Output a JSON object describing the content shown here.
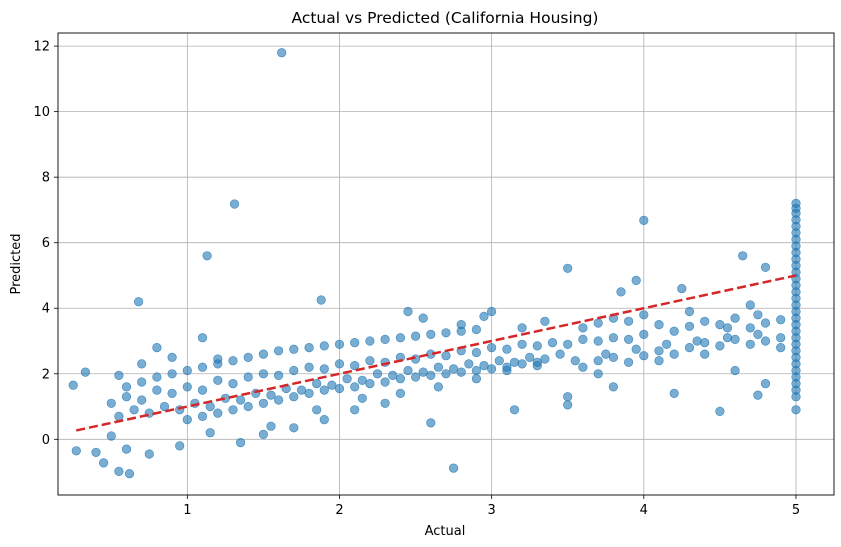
{
  "chart_data": {
    "type": "scatter",
    "title": "Actual vs Predicted (California Housing)",
    "xlabel": "Actual",
    "ylabel": "Predicted",
    "xlim": [
      0.15,
      5.25
    ],
    "ylim": [
      -1.7,
      12.4
    ],
    "xticks": [
      1,
      2,
      3,
      4,
      5
    ],
    "yticks": [
      0,
      2,
      4,
      6,
      8,
      10,
      12
    ],
    "grid": true,
    "marker_color": "#1f77b4",
    "marker_alpha": 0.6,
    "reference_line": {
      "x": [
        0.27,
        5.0
      ],
      "y": [
        0.27,
        5.0
      ],
      "color": "#d62728",
      "style": "dashed"
    },
    "series": [
      {
        "points": [
          [
            1.62,
            11.8
          ],
          [
            1.31,
            7.18
          ],
          [
            1.13,
            5.6
          ],
          [
            0.68,
            4.2
          ],
          [
            1.88,
            4.25
          ],
          [
            4.0,
            6.68
          ],
          [
            2.75,
            -0.88
          ],
          [
            0.55,
            -0.98
          ],
          [
            0.62,
            -1.05
          ],
          [
            0.45,
            -0.72
          ],
          [
            0.27,
            -0.35
          ],
          [
            0.25,
            1.65
          ],
          [
            0.33,
            2.05
          ],
          [
            3.5,
            5.22
          ],
          [
            4.65,
            5.6
          ],
          [
            4.8,
            5.25
          ],
          [
            3.95,
            4.85
          ],
          [
            4.25,
            4.6
          ],
          [
            3.85,
            4.5
          ],
          [
            4.5,
            0.85
          ],
          [
            4.75,
            1.35
          ],
          [
            4.2,
            1.4
          ],
          [
            3.15,
            0.9
          ],
          [
            2.6,
            0.5
          ],
          [
            3.5,
            1.05
          ],
          [
            5.0,
            7.2
          ],
          [
            5.0,
            7.05
          ],
          [
            5.0,
            6.9
          ],
          [
            5.0,
            6.7
          ],
          [
            5.0,
            6.5
          ],
          [
            5.0,
            6.3
          ],
          [
            5.0,
            6.1
          ],
          [
            5.0,
            5.9
          ],
          [
            5.0,
            5.7
          ],
          [
            5.0,
            5.5
          ],
          [
            5.0,
            5.3
          ],
          [
            5.0,
            5.1
          ],
          [
            5.0,
            4.9
          ],
          [
            5.0,
            4.7
          ],
          [
            5.0,
            4.5
          ],
          [
            5.0,
            4.3
          ],
          [
            5.0,
            4.1
          ],
          [
            5.0,
            3.9
          ],
          [
            5.0,
            3.7
          ],
          [
            5.0,
            3.5
          ],
          [
            5.0,
            3.3
          ],
          [
            5.0,
            3.1
          ],
          [
            5.0,
            2.9
          ],
          [
            5.0,
            2.7
          ],
          [
            5.0,
            2.5
          ],
          [
            5.0,
            2.3
          ],
          [
            5.0,
            2.1
          ],
          [
            5.0,
            1.9
          ],
          [
            5.0,
            1.7
          ],
          [
            5.0,
            1.5
          ],
          [
            5.0,
            1.3
          ],
          [
            5.0,
            0.9
          ],
          [
            4.8,
            1.7
          ],
          [
            4.75,
            3.8
          ],
          [
            4.9,
            3.1
          ],
          [
            4.55,
            3.4
          ],
          [
            4.7,
            4.1
          ],
          [
            4.4,
            2.6
          ],
          [
            4.6,
            2.1
          ],
          [
            4.3,
            3.9
          ],
          [
            4.1,
            2.4
          ],
          [
            3.8,
            1.6
          ],
          [
            3.7,
            2.0
          ],
          [
            3.5,
            1.3
          ],
          [
            3.35,
            3.6
          ],
          [
            3.2,
            3.4
          ],
          [
            3.0,
            3.9
          ],
          [
            2.95,
            3.75
          ],
          [
            2.8,
            3.5
          ],
          [
            2.55,
            3.7
          ],
          [
            2.45,
            3.9
          ],
          [
            2.3,
            1.1
          ],
          [
            2.1,
            0.9
          ],
          [
            1.9,
            0.6
          ],
          [
            1.7,
            0.35
          ],
          [
            1.5,
            0.15
          ],
          [
            1.35,
            -0.1
          ],
          [
            1.1,
            3.1
          ],
          [
            1.2,
            2.45
          ],
          [
            0.8,
            2.8
          ],
          [
            0.9,
            2.5
          ],
          [
            0.7,
            2.3
          ],
          [
            0.55,
            1.95
          ],
          [
            0.5,
            0.1
          ],
          [
            0.4,
            -0.4
          ],
          [
            0.6,
            -0.3
          ],
          [
            0.75,
            -0.45
          ],
          [
            0.95,
            -0.2
          ],
          [
            1.15,
            0.2
          ],
          [
            1.55,
            0.4
          ],
          [
            1.85,
            0.9
          ],
          [
            2.15,
            1.25
          ],
          [
            2.4,
            1.4
          ],
          [
            2.65,
            1.6
          ],
          [
            2.9,
            1.85
          ],
          [
            3.1,
            2.1
          ],
          [
            3.3,
            2.25
          ],
          [
            3.55,
            2.4
          ],
          [
            3.75,
            2.6
          ],
          [
            3.95,
            2.75
          ],
          [
            4.15,
            2.9
          ],
          [
            4.35,
            3.0
          ],
          [
            4.55,
            3.1
          ],
          [
            4.75,
            3.2
          ],
          [
            0.5,
            1.1
          ],
          [
            0.6,
            1.3
          ],
          [
            0.7,
            1.2
          ],
          [
            0.8,
            1.5
          ],
          [
            0.9,
            1.4
          ],
          [
            1.0,
            1.6
          ],
          [
            1.1,
            1.5
          ],
          [
            1.2,
            1.8
          ],
          [
            1.3,
            1.7
          ],
          [
            1.4,
            1.9
          ],
          [
            1.5,
            2.0
          ],
          [
            1.6,
            1.95
          ],
          [
            1.7,
            2.1
          ],
          [
            1.8,
            2.2
          ],
          [
            1.9,
            2.15
          ],
          [
            2.0,
            2.3
          ],
          [
            2.1,
            2.25
          ],
          [
            2.2,
            2.4
          ],
          [
            2.3,
            2.35
          ],
          [
            2.4,
            2.5
          ],
          [
            2.5,
            2.45
          ],
          [
            2.6,
            2.6
          ],
          [
            2.7,
            2.55
          ],
          [
            2.8,
            2.7
          ],
          [
            2.9,
            2.65
          ],
          [
            3.0,
            2.8
          ],
          [
            3.1,
            2.75
          ],
          [
            3.2,
            2.9
          ],
          [
            3.3,
            2.85
          ],
          [
            3.4,
            2.95
          ],
          [
            3.5,
            2.9
          ],
          [
            3.6,
            3.05
          ],
          [
            3.7,
            3.0
          ],
          [
            3.8,
            3.1
          ],
          [
            3.9,
            3.05
          ],
          [
            4.0,
            3.2
          ],
          [
            0.55,
            0.7
          ],
          [
            0.65,
            0.9
          ],
          [
            0.75,
            0.8
          ],
          [
            0.85,
            1.0
          ],
          [
            0.95,
            0.9
          ],
          [
            1.05,
            1.1
          ],
          [
            1.15,
            1.0
          ],
          [
            1.25,
            1.25
          ],
          [
            1.35,
            1.2
          ],
          [
            1.45,
            1.4
          ],
          [
            1.55,
            1.35
          ],
          [
            1.65,
            1.55
          ],
          [
            1.75,
            1.5
          ],
          [
            1.85,
            1.7
          ],
          [
            1.95,
            1.65
          ],
          [
            2.05,
            1.85
          ],
          [
            2.15,
            1.8
          ],
          [
            2.25,
            2.0
          ],
          [
            2.35,
            1.95
          ],
          [
            2.45,
            2.1
          ],
          [
            2.55,
            2.05
          ],
          [
            2.65,
            2.2
          ],
          [
            2.75,
            2.15
          ],
          [
            2.85,
            2.3
          ],
          [
            2.95,
            2.25
          ],
          [
            3.05,
            2.4
          ],
          [
            3.15,
            2.35
          ],
          [
            3.25,
            2.5
          ],
          [
            3.35,
            2.45
          ],
          [
            3.45,
            2.6
          ],
          [
            0.6,
            1.6
          ],
          [
            0.7,
            1.75
          ],
          [
            0.8,
            1.9
          ],
          [
            0.9,
            2.0
          ],
          [
            1.0,
            2.1
          ],
          [
            1.1,
            2.2
          ],
          [
            1.2,
            2.3
          ],
          [
            1.3,
            2.4
          ],
          [
            1.4,
            2.5
          ],
          [
            1.5,
            2.6
          ],
          [
            1.6,
            2.7
          ],
          [
            1.7,
            2.75
          ],
          [
            1.8,
            2.8
          ],
          [
            1.9,
            2.85
          ],
          [
            2.0,
            2.9
          ],
          [
            2.1,
            2.95
          ],
          [
            2.2,
            3.0
          ],
          [
            2.3,
            3.05
          ],
          [
            2.4,
            3.1
          ],
          [
            2.5,
            3.15
          ],
          [
            2.6,
            3.2
          ],
          [
            2.7,
            3.25
          ],
          [
            2.8,
            3.3
          ],
          [
            2.9,
            3.35
          ],
          [
            1.0,
            0.6
          ],
          [
            1.1,
            0.7
          ],
          [
            1.2,
            0.8
          ],
          [
            1.3,
            0.9
          ],
          [
            1.4,
            1.0
          ],
          [
            1.5,
            1.1
          ],
          [
            1.6,
            1.2
          ],
          [
            1.7,
            1.3
          ],
          [
            1.8,
            1.4
          ],
          [
            1.9,
            1.5
          ],
          [
            2.0,
            1.55
          ],
          [
            2.1,
            1.6
          ],
          [
            2.2,
            1.7
          ],
          [
            2.3,
            1.75
          ],
          [
            2.4,
            1.85
          ],
          [
            2.5,
            1.9
          ],
          [
            2.6,
            1.95
          ],
          [
            2.7,
            2.0
          ],
          [
            2.8,
            2.05
          ],
          [
            2.9,
            2.1
          ],
          [
            3.0,
            2.15
          ],
          [
            3.1,
            2.2
          ],
          [
            3.2,
            2.3
          ],
          [
            3.3,
            2.35
          ],
          [
            3.6,
            2.2
          ],
          [
            3.7,
            2.4
          ],
          [
            3.8,
            2.5
          ],
          [
            3.9,
            2.35
          ],
          [
            4.0,
            2.55
          ],
          [
            4.1,
            2.7
          ],
          [
            4.2,
            2.6
          ],
          [
            4.3,
            2.8
          ],
          [
            4.4,
            2.95
          ],
          [
            4.5,
            2.85
          ],
          [
            4.6,
            3.05
          ],
          [
            4.7,
            2.9
          ],
          [
            4.8,
            3.0
          ],
          [
            4.9,
            2.8
          ],
          [
            3.6,
            3.4
          ],
          [
            3.7,
            3.55
          ],
          [
            3.8,
            3.7
          ],
          [
            3.9,
            3.6
          ],
          [
            4.0,
            3.8
          ],
          [
            4.1,
            3.5
          ],
          [
            4.2,
            3.3
          ],
          [
            4.3,
            3.45
          ],
          [
            4.4,
            3.6
          ],
          [
            4.5,
            3.5
          ],
          [
            4.6,
            3.7
          ],
          [
            4.7,
            3.4
          ],
          [
            4.8,
            3.55
          ],
          [
            4.9,
            3.65
          ]
        ]
      }
    ]
  }
}
